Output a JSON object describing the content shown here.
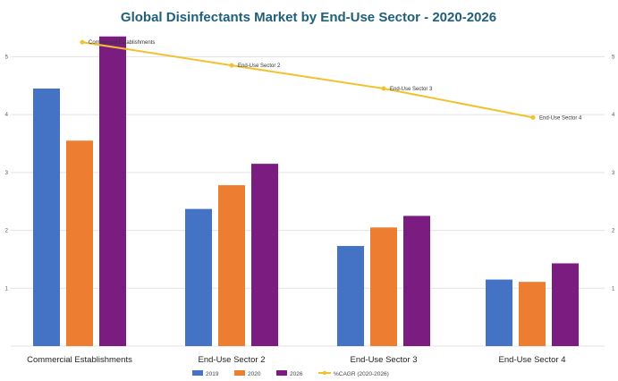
{
  "chart_data": {
    "type": "bar",
    "title": "Global Disinfectants Market by End-Use Sector - 2020-2026",
    "categories": [
      "Commercial Establishments",
      "End-Use Sector 2",
      "End-Use Sector 3",
      "End-Use Sector 4"
    ],
    "series": [
      {
        "name": "2019",
        "values": [
          4.45,
          2.37,
          1.73,
          1.15
        ],
        "color": "#4472c4"
      },
      {
        "name": "2020",
        "values": [
          3.55,
          2.78,
          2.05,
          1.11
        ],
        "color": "#ed7d31"
      },
      {
        "name": "2026",
        "values": [
          5.35,
          3.15,
          2.25,
          1.43
        ],
        "color": "#7b1c80"
      }
    ],
    "line_series": {
      "name": "%CAGR (2020-2026)",
      "values": [
        5.25,
        4.85,
        4.45,
        3.95
      ],
      "point_labels": [
        "Commercial Establishments",
        "End-Use Sector 2",
        "End-Use Sector 3",
        "End-Use Sector 4"
      ],
      "color": "#f2c12e",
      "axis": "right"
    },
    "left_ticks": [
      "",
      "1",
      "2",
      "3",
      "4",
      "5"
    ],
    "right_ticks": [
      "",
      "1",
      "2",
      "3",
      "4",
      "5"
    ],
    "ylim": [
      0,
      5.3
    ],
    "xlabel": "",
    "ylabel": "",
    "grid": true,
    "legend_position": "bottom"
  }
}
